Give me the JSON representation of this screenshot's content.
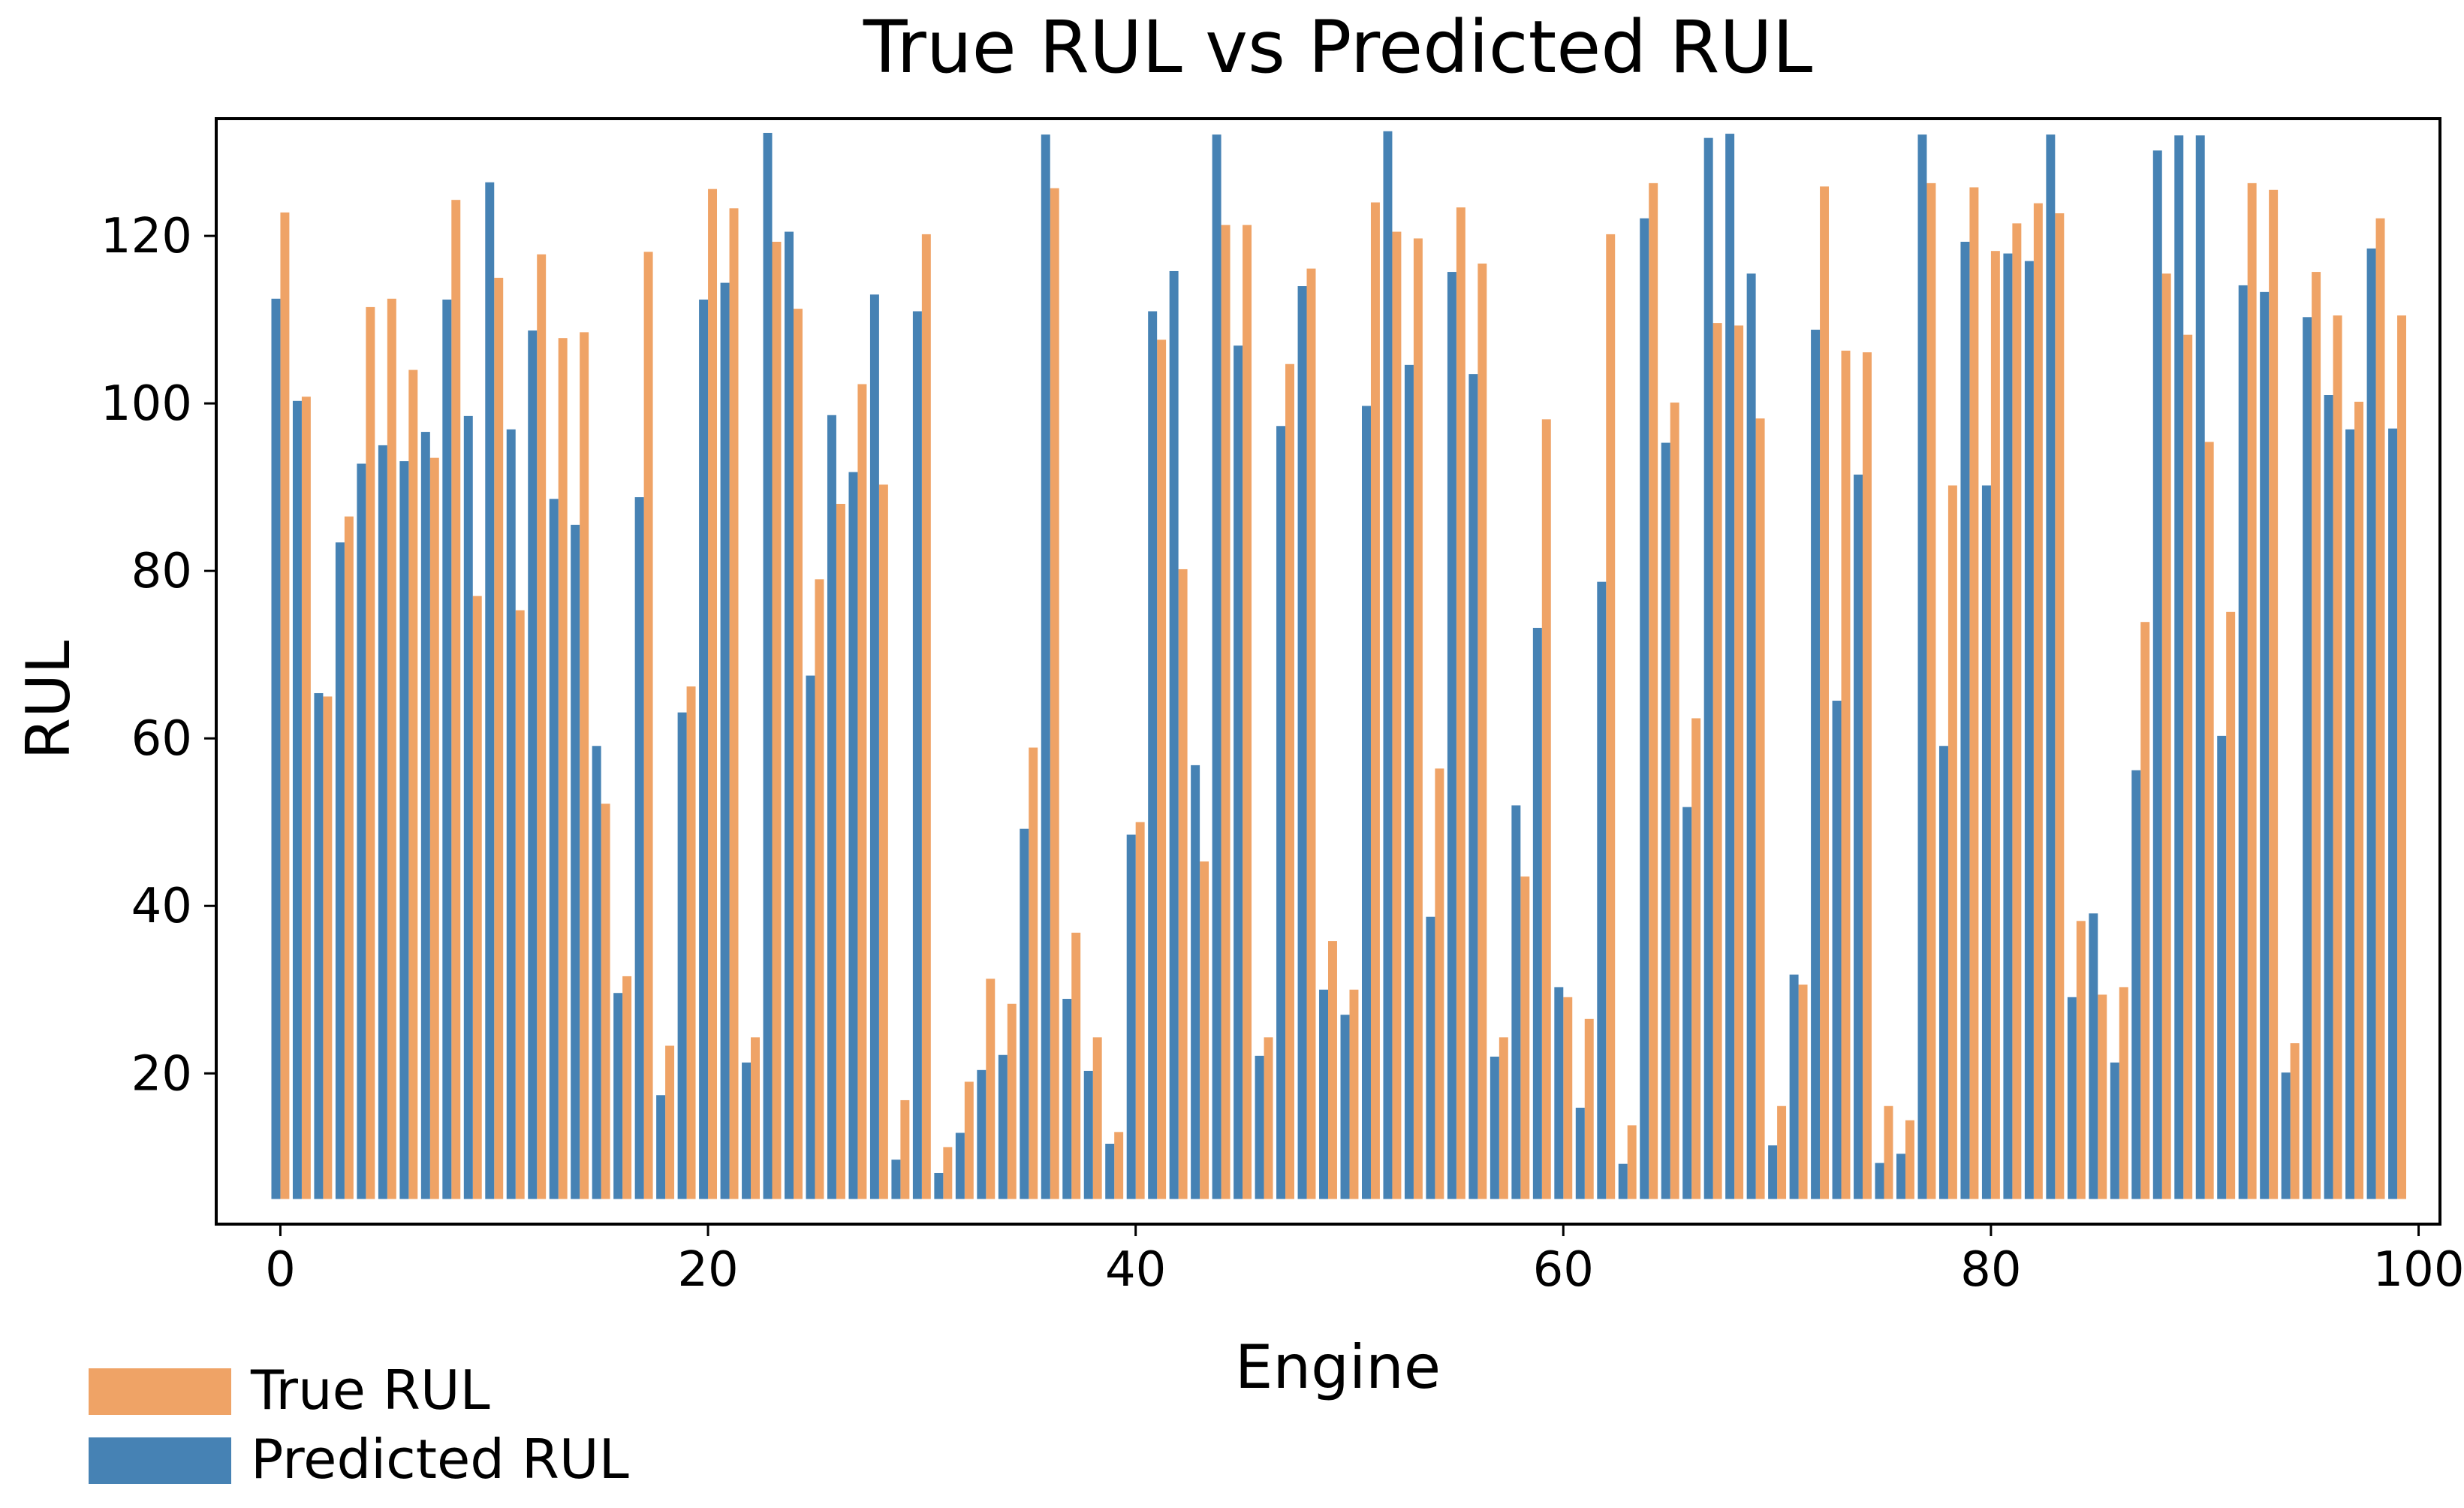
{
  "chart_data": {
    "type": "bar",
    "title": "True RUL vs Predicted RUL",
    "xlabel": "Engine",
    "ylabel": "RUL",
    "xlim": [
      -3,
      101
    ],
    "ylim": [
      2,
      134
    ],
    "xticks": [
      0,
      20,
      40,
      60,
      80,
      100
    ],
    "yticks": [
      20,
      40,
      60,
      80,
      100,
      120
    ],
    "grid": false,
    "legend_position": "bottom-left",
    "categories": [
      0,
      1,
      2,
      3,
      4,
      5,
      6,
      7,
      8,
      9,
      10,
      11,
      12,
      13,
      14,
      15,
      16,
      17,
      18,
      19,
      20,
      21,
      22,
      23,
      24,
      25,
      26,
      27,
      28,
      29,
      30,
      31,
      32,
      33,
      34,
      35,
      36,
      37,
      38,
      39,
      40,
      41,
      42,
      43,
      44,
      45,
      46,
      47,
      48,
      49,
      50,
      51,
      52,
      53,
      54,
      55,
      56,
      57,
      58,
      59,
      60,
      61,
      62,
      63,
      64,
      65,
      66,
      67,
      68,
      69,
      70,
      71,
      72,
      73,
      74,
      75,
      76,
      77,
      78,
      79,
      80,
      81,
      82,
      83,
      84,
      85,
      86,
      87,
      88,
      89,
      90,
      91,
      92,
      93,
      94,
      95,
      96,
      97,
      98,
      99
    ],
    "series": [
      {
        "name": "True RUL",
        "color": "#EFA366",
        "values": [
          122.8,
          100.8,
          65.0,
          86.5,
          111.5,
          112.5,
          104.0,
          93.5,
          124.3,
          77.0,
          115.0,
          75.3,
          117.8,
          107.8,
          108.5,
          52.2,
          31.6,
          118.1,
          23.3,
          66.2,
          125.6,
          123.3,
          24.3,
          119.3,
          111.3,
          79.0,
          88.0,
          102.3,
          90.3,
          16.8,
          120.2,
          11.2,
          19.0,
          31.3,
          28.3,
          58.9,
          125.7,
          36.8,
          24.3,
          13.0,
          50.0,
          107.6,
          80.2,
          45.3,
          121.3,
          121.3,
          24.3,
          104.7,
          116.1,
          35.8,
          30.0,
          124.0,
          120.5,
          119.7,
          56.4,
          123.4,
          116.7,
          24.3,
          43.5,
          98.1,
          29.1,
          26.5,
          120.2,
          13.8,
          126.3,
          100.1,
          62.4,
          109.6,
          109.3,
          98.2,
          16.1,
          30.6,
          125.9,
          106.3,
          106.1,
          16.1,
          14.4,
          126.3,
          90.2,
          125.8,
          118.2,
          121.5,
          123.9,
          122.7,
          38.2,
          29.4,
          30.3,
          73.9,
          115.5,
          108.2,
          95.4,
          75.1,
          126.3,
          125.5,
          23.6,
          115.7,
          110.5,
          100.2,
          122.1,
          110.5
        ]
      },
      {
        "name": "Predicted RUL",
        "color": "#4682B4",
        "values": [
          112.5,
          100.3,
          65.4,
          83.4,
          92.8,
          95.0,
          93.1,
          96.6,
          112.4,
          98.5,
          126.4,
          96.9,
          108.7,
          88.6,
          85.5,
          59.1,
          29.6,
          88.8,
          17.4,
          63.1,
          112.4,
          114.4,
          21.3,
          132.3,
          120.5,
          67.5,
          98.6,
          91.8,
          113.0,
          9.7,
          111.0,
          8.1,
          12.9,
          20.4,
          22.2,
          49.2,
          132.1,
          28.9,
          20.3,
          11.6,
          48.5,
          111.0,
          115.8,
          56.8,
          132.1,
          106.9,
          22.1,
          97.3,
          114.0,
          30.0,
          27.0,
          99.7,
          132.5,
          104.6,
          38.7,
          115.7,
          103.5,
          22.0,
          52.0,
          73.2,
          30.3,
          15.9,
          78.7,
          9.2,
          122.1,
          95.3,
          51.8,
          131.7,
          132.2,
          115.5,
          11.4,
          31.8,
          108.8,
          64.5,
          91.5,
          9.3,
          10.4,
          132.1,
          59.1,
          119.3,
          90.2,
          117.9,
          117.0,
          132.1,
          29.1,
          39.1,
          21.3,
          56.2,
          130.2,
          132.0,
          132.0,
          60.3,
          114.1,
          113.3,
          20.1,
          110.3,
          101.0,
          96.9,
          118.5,
          97.0
        ]
      }
    ]
  }
}
